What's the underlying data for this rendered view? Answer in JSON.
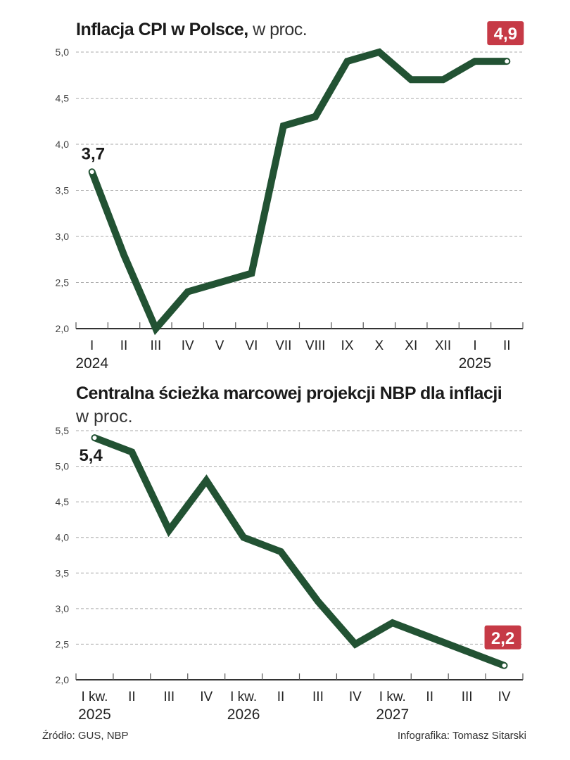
{
  "chart_data": [
    {
      "type": "line",
      "title": "Inflacja CPI w Polsce,",
      "subtitle": "w proc.",
      "categories": [
        "I",
        "II",
        "III",
        "IV",
        "V",
        "VI",
        "VII",
        "VIII",
        "IX",
        "X",
        "XI",
        "XII",
        "I",
        "II"
      ],
      "year_labels": [
        {
          "index": 0,
          "label": "2024"
        },
        {
          "index": 12,
          "label": "2025"
        }
      ],
      "series": [
        {
          "name": "CPI",
          "values": [
            3.7,
            2.8,
            2.0,
            2.4,
            2.5,
            2.6,
            4.2,
            4.3,
            4.9,
            5.0,
            4.7,
            4.7,
            4.9,
            4.9
          ]
        }
      ],
      "yticks": [
        "2,0",
        "2,5",
        "3,0",
        "3,5",
        "4,0",
        "4,5",
        "5,0"
      ],
      "ylim": [
        2.0,
        5.0
      ],
      "grid": true,
      "annotations": [
        {
          "index": 0,
          "label": "3,7",
          "style": "plain"
        },
        {
          "index": 13,
          "label": "4,9",
          "style": "badge"
        }
      ],
      "line_color": "#225233",
      "badge_color": "#c63a46"
    },
    {
      "type": "line",
      "title": "Centralna ścieżka marcowej projekcji NBP dla inflacji",
      "subtitle": "w proc.",
      "categories": [
        "I kw.",
        "II",
        "III",
        "IV",
        "I kw.",
        "II",
        "III",
        "IV",
        "I kw.",
        "II",
        "III",
        "IV"
      ],
      "year_labels": [
        {
          "index": 0,
          "label": "2025"
        },
        {
          "index": 4,
          "label": "2026"
        },
        {
          "index": 8,
          "label": "2027"
        }
      ],
      "series": [
        {
          "name": "Projekcja NBP",
          "values": [
            5.4,
            5.2,
            4.1,
            4.8,
            4.0,
            3.8,
            3.1,
            2.5,
            2.8,
            2.6,
            2.4,
            2.2
          ]
        }
      ],
      "yticks": [
        "2,0",
        "2,5",
        "3,0",
        "3,5",
        "4,0",
        "4,5",
        "5,0",
        "5,5"
      ],
      "ylim": [
        2.0,
        5.5
      ],
      "grid": true,
      "annotations": [
        {
          "index": 0,
          "label": "5,4",
          "style": "plain"
        },
        {
          "index": 11,
          "label": "2,2",
          "style": "badge"
        }
      ],
      "line_color": "#225233",
      "badge_color": "#c63a46"
    }
  ],
  "footer": {
    "source": "Źródło: GUS, NBP",
    "credit": "Infografika: Tomasz Sitarski"
  }
}
